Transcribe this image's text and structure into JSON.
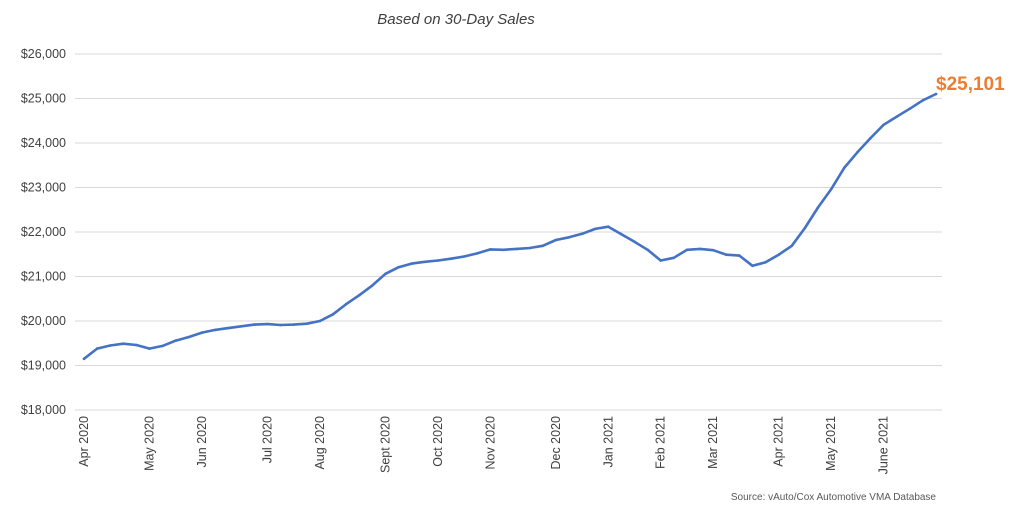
{
  "chart_data": {
    "type": "line",
    "title": "",
    "subtitle": "Based on 30-Day Sales",
    "xlabel": "",
    "ylabel": "",
    "ylim": [
      18000,
      26000
    ],
    "ytick_values": [
      18000,
      19000,
      20000,
      21000,
      22000,
      23000,
      24000,
      25000,
      26000
    ],
    "ytick_labels": [
      "$18,000",
      "$19,000",
      "$20,000",
      "$21,000",
      "$22,000",
      "$23,000",
      "$24,000",
      "$25,000",
      "$26,000"
    ],
    "x_ticks": [
      {
        "label": "Apr 2020",
        "index": 0
      },
      {
        "label": "May 2020",
        "index": 5
      },
      {
        "label": "Jun 2020",
        "index": 9
      },
      {
        "label": "Jul 2020",
        "index": 14
      },
      {
        "label": "Aug 2020",
        "index": 18
      },
      {
        "label": "Sept 2020",
        "index": 23
      },
      {
        "label": "Oct 2020",
        "index": 27
      },
      {
        "label": "Nov 2020",
        "index": 31
      },
      {
        "label": "Dec 2020",
        "index": 36
      },
      {
        "label": "Jan 2021",
        "index": 40
      },
      {
        "label": "Feb 2021",
        "index": 44
      },
      {
        "label": "Mar 2021",
        "index": 48
      },
      {
        "label": "Apr 2021",
        "index": 53
      },
      {
        "label": "May 2021",
        "index": 57
      },
      {
        "label": "June 2021",
        "index": 61
      }
    ],
    "grid": true,
    "legend": "none",
    "series": [
      {
        "name": "",
        "color": "#4472c4",
        "values": [
          19150,
          19380,
          19450,
          19490,
          19460,
          19380,
          19440,
          19560,
          19640,
          19740,
          19800,
          19840,
          19880,
          19920,
          19930,
          19910,
          19920,
          19940,
          20000,
          20150,
          20380,
          20580,
          20800,
          21060,
          21210,
          21290,
          21330,
          21360,
          21400,
          21450,
          21520,
          21610,
          21600,
          21620,
          21640,
          21690,
          21820,
          21880,
          21960,
          22070,
          22120,
          21950,
          21780,
          21600,
          21360,
          21420,
          21600,
          21620,
          21590,
          21490,
          21470,
          21240,
          21320,
          21490,
          21690,
          22090,
          22550,
          22960,
          23440,
          23790,
          24110,
          24410,
          24590,
          24770,
          24960,
          25101
        ]
      }
    ],
    "end_label": "$25,101",
    "end_label_color": "#ed7d31",
    "source": "Source: vAuto/Cox Automotive VMA Database"
  }
}
